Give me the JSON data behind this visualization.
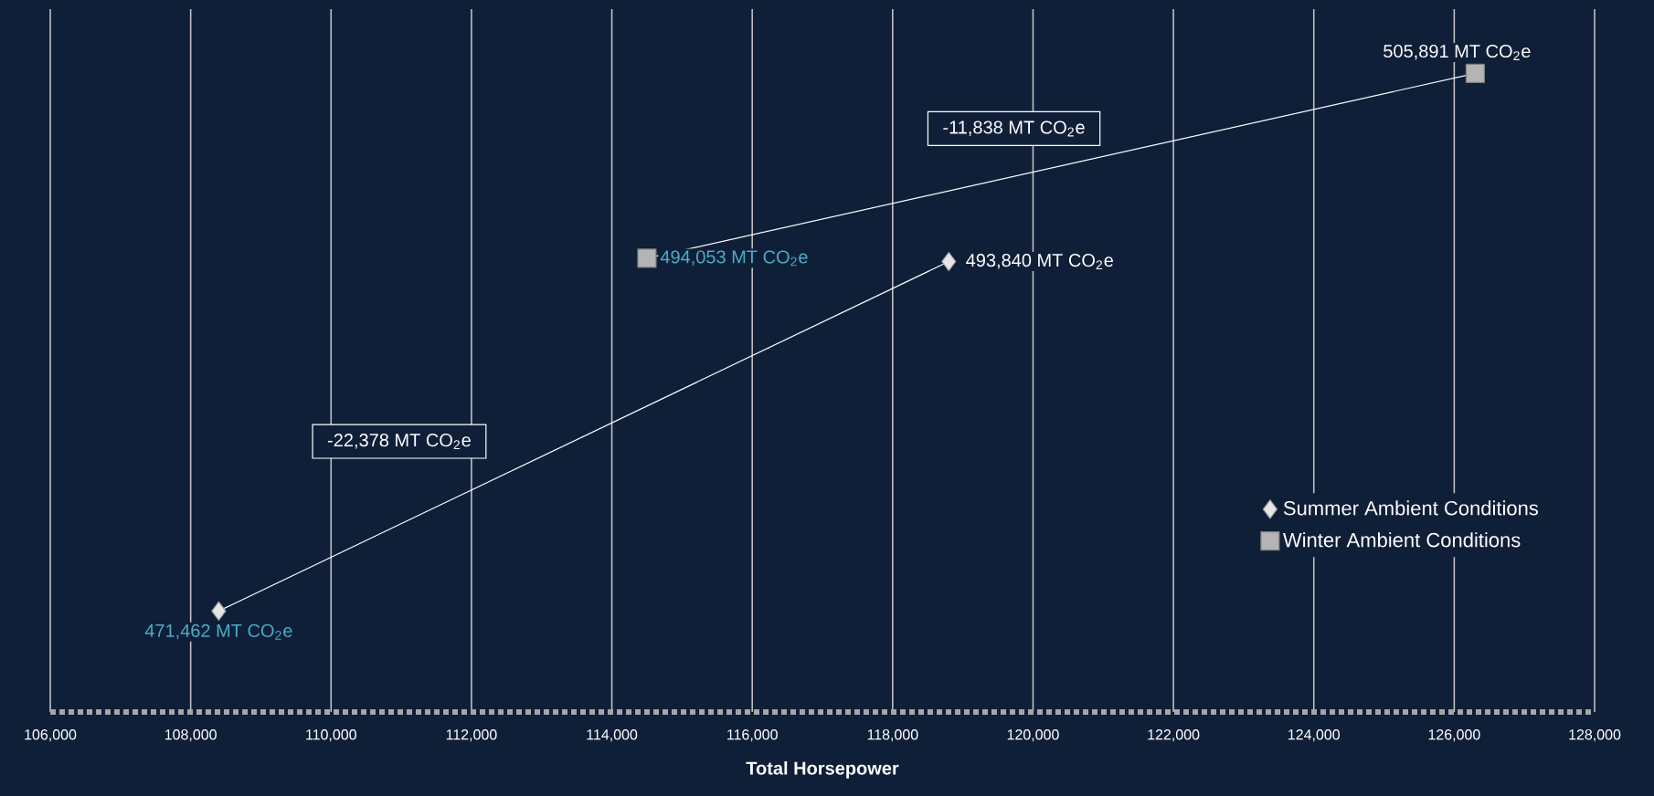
{
  "chart_data": {
    "type": "line",
    "xlabel": "Total Horsepower",
    "series": [
      {
        "name": "Summer Ambient Conditions",
        "color": "#e6e6e6",
        "marker": "diamond",
        "x": [
          108400,
          118800
        ],
        "values": [
          471462,
          493840
        ],
        "value_labels": [
          "471,462 MT CO$_{2}$e",
          "493,840 MT CO$_{2}$e"
        ]
      },
      {
        "name": "Winter Ambient Conditions",
        "color": "#b4b4b4",
        "marker": "square",
        "x": [
          114500,
          126300
        ],
        "values": [
          494053,
          505891
        ],
        "value_labels": [
          "494,053 MT CO$_{2}$e",
          "505,891 MT CO$_{2}$e"
        ]
      }
    ],
    "annotations": [
      "-11,838 MT CO$_{2}$e",
      "-22,378 MT CO$_{2}$e"
    ],
    "xlim": [
      106000,
      128000
    ],
    "xticks": [
      {
        "value": 106000,
        "label": "106,000"
      },
      {
        "value": 108000,
        "label": "108,000"
      },
      {
        "value": 110000,
        "label": "110,000"
      },
      {
        "value": 112000,
        "label": "112,000"
      },
      {
        "value": 114000,
        "label": "114,000"
      },
      {
        "value": 116000,
        "label": "116,000"
      },
      {
        "value": 118000,
        "label": "118,000"
      },
      {
        "value": 120000,
        "label": "120,000"
      },
      {
        "value": 122000,
        "label": "122,000"
      },
      {
        "value": 124000,
        "label": "124,000"
      },
      {
        "value": 126000,
        "label": "126,000"
      },
      {
        "value": 128000,
        "label": "128,000"
      }
    ],
    "ylim": [
      465000,
      510000
    ],
    "tick_labels": "x",
    "grid": "x",
    "legend": "bottom right",
    "line_style": "solid"
  }
}
